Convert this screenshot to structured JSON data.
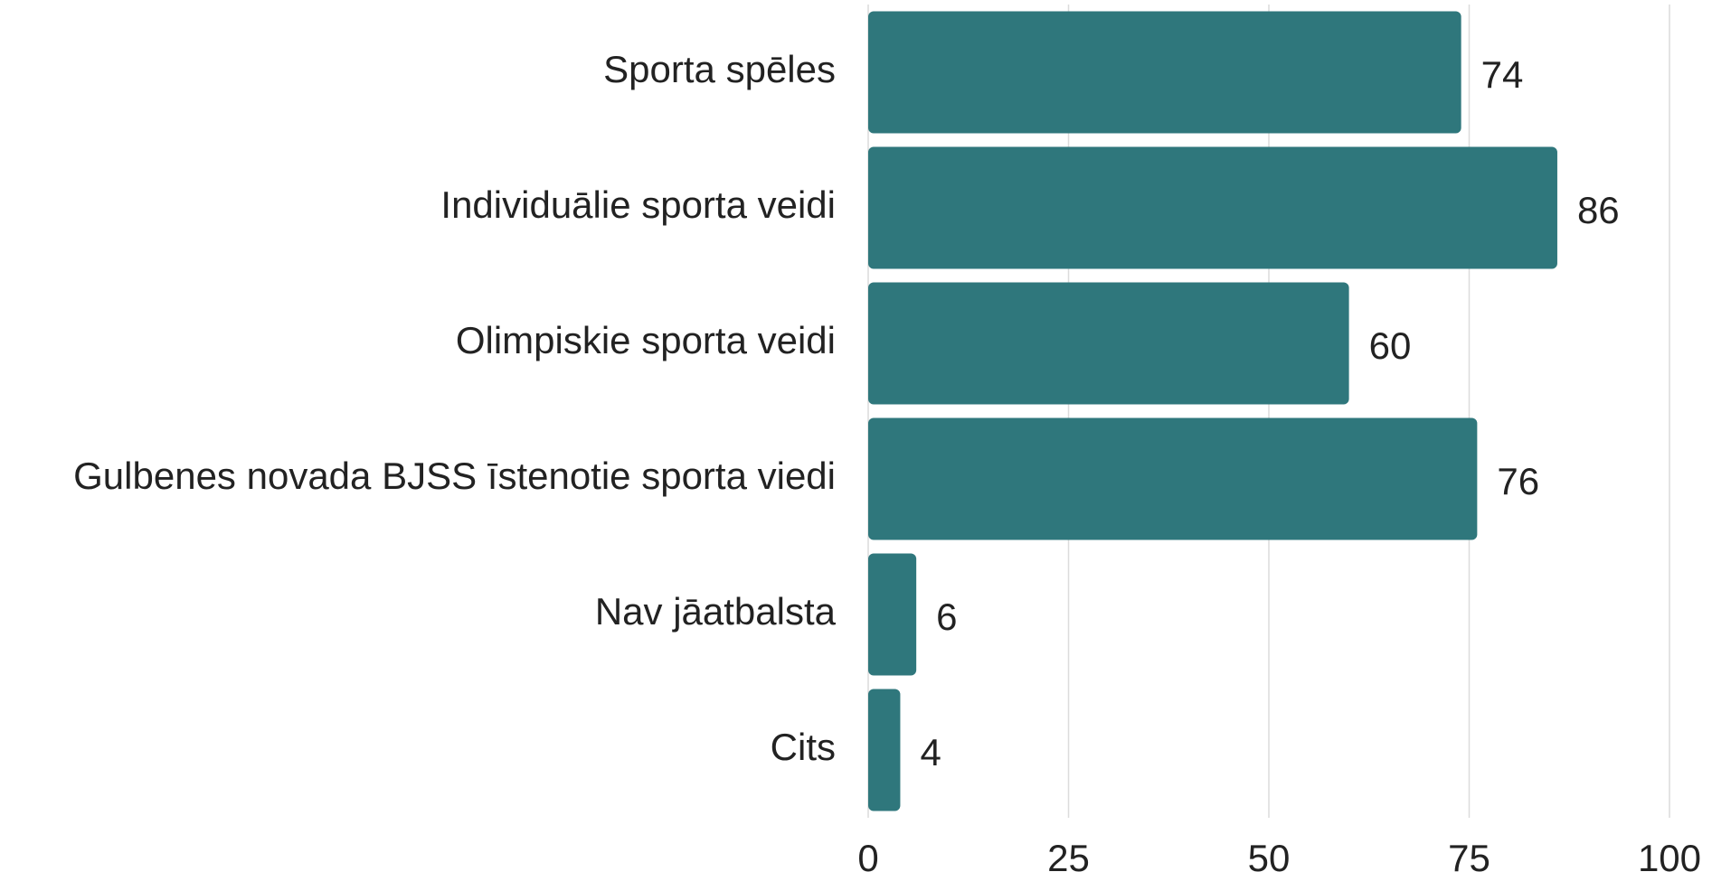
{
  "chart_data": {
    "type": "barh",
    "categories": [
      "Sporta spēles",
      "Individuālie sporta veidi",
      "Olimpiskie sporta veidi",
      "Gulbenes novada BJSS īstenotie sporta viedi",
      "Nav jāatbalsta",
      "Cits"
    ],
    "values": [
      74,
      86,
      60,
      76,
      6,
      4
    ],
    "color": "#2f777c",
    "xlim": [
      0,
      100
    ],
    "xticks": [
      0,
      25,
      50,
      75,
      100
    ],
    "grid": true
  }
}
